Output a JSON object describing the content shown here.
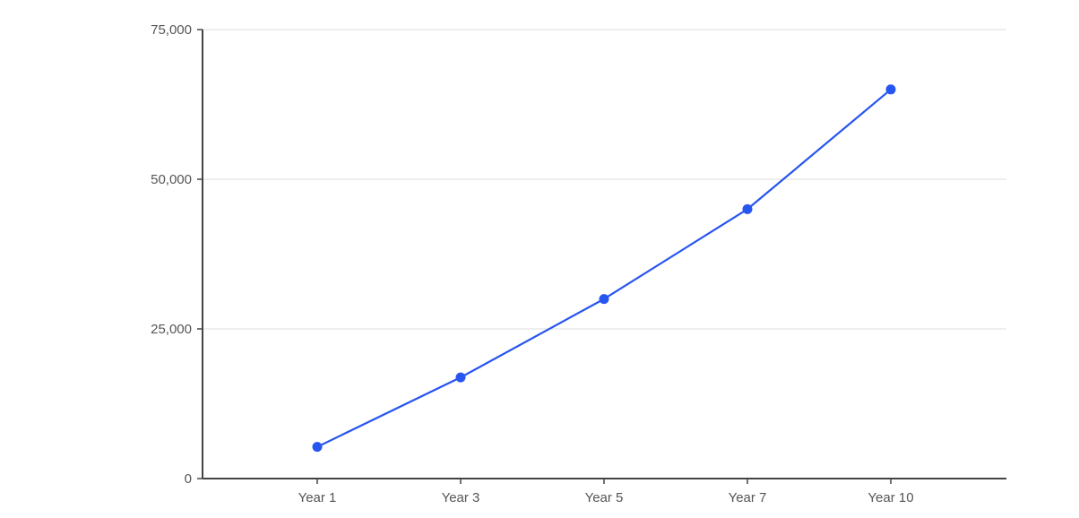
{
  "chart_data": {
    "type": "line",
    "title": "",
    "xlabel": "",
    "ylabel": "",
    "categories": [
      "Year 1",
      "Year 3",
      "Year 5",
      "Year 7",
      "Year 10"
    ],
    "series": [
      {
        "values": [
          5300,
          16900,
          30000,
          45000,
          65000
        ],
        "color": "#2755f0"
      }
    ],
    "ylim": [
      0,
      75000
    ],
    "yticks": [
      0,
      25000,
      50000,
      75000
    ],
    "ytick_labels": [
      "0",
      "25,000",
      "50,000",
      "75,000"
    ],
    "grid": true,
    "legend": "none"
  }
}
